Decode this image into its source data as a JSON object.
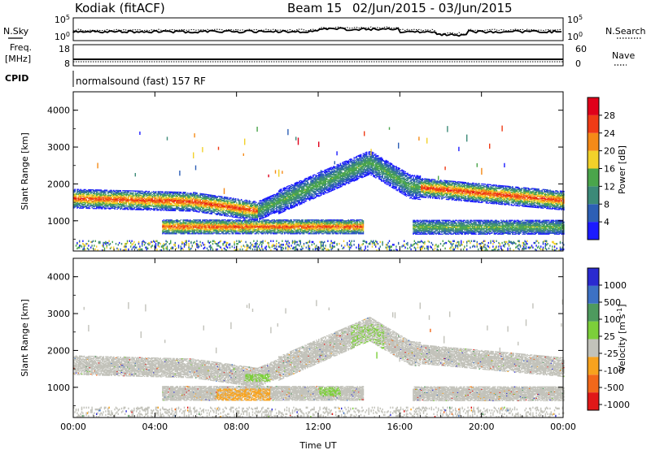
{
  "header": {
    "station": "Kodiak (fitACF)",
    "beam": "Beam 15",
    "date_range": "02/Jun/2015 - 03/Jun/2015"
  },
  "strip_labels": {
    "nsky": "N.Sky",
    "nsearch": "N.Search",
    "freq_l1": "Freq.",
    "freq_l2": "[MHz]",
    "nave": "Nave",
    "cpid": "CPID",
    "cpid_value": "normalsound (fast) 157 RF"
  },
  "strip_ticks": {
    "noise_left": [
      "10^5",
      "10^0"
    ],
    "noise_right": [
      "10^5",
      "10^0"
    ],
    "freq_left": [
      "18",
      "8"
    ],
    "nave_right": [
      "60",
      "0"
    ]
  },
  "colors": {
    "power_scale": [
      "#1b1bff",
      "#2d5fb5",
      "#3c8a78",
      "#4aa54b",
      "#f2d12a",
      "#f58a17",
      "#ef3b16",
      "#e0001a"
    ],
    "velocity_scale": [
      "#2a2ad0",
      "#3d71c4",
      "#4e9a5e",
      "#7ccf3a",
      "#c2c2ba",
      "#f7a21e",
      "#f2681a",
      "#e01818"
    ],
    "scatter_background": "#ffffff"
  },
  "chart_data": [
    {
      "type": "heatmap",
      "title": "",
      "xlabel": "Time UT",
      "ylabel": "Slant Range [km]",
      "x_ticks": [
        "00:00",
        "04:00",
        "08:00",
        "12:00",
        "16:00",
        "20:00",
        "00:00"
      ],
      "xlim": [
        0,
        24
      ],
      "y_ticks": [
        "1000",
        "2000",
        "3000",
        "4000"
      ],
      "ylim": [
        180,
        4500
      ],
      "colorbar": {
        "label": "Power [dB]",
        "ticks": [
          "4",
          "8",
          "12",
          "16",
          "20",
          "24",
          "28"
        ],
        "range": [
          0,
          32
        ]
      },
      "scatter_bands": [
        {
          "name": "lower",
          "start_h": 4.2,
          "end_h": 14.3,
          "center_km": 830,
          "width_km": 380,
          "peak_db": 26
        },
        {
          "name": "lower",
          "start_h": 16.6,
          "end_h": 24.0,
          "center_km": 820,
          "width_km": 360,
          "peak_db": 16
        },
        {
          "name": "upper",
          "start_h": 0.0,
          "end_h": 24.0,
          "center_km": 1550,
          "width_km": 550,
          "peak_db": 24
        }
      ]
    },
    {
      "type": "heatmap",
      "title": "",
      "xlabel": "Time UT",
      "ylabel": "Slant Range [km]",
      "x_ticks": [
        "00:00",
        "04:00",
        "08:00",
        "12:00",
        "16:00",
        "20:00",
        "00:00"
      ],
      "xlim": [
        0,
        24
      ],
      "y_ticks": [
        "1000",
        "2000",
        "3000",
        "4000"
      ],
      "ylim": [
        180,
        4500
      ],
      "colorbar": {
        "label": "Velocity [m s^-1]",
        "ticks": [
          "1000",
          "500",
          "100",
          "25",
          "-25",
          "-100",
          "-500",
          "-1000"
        ],
        "range": [
          -1000,
          1000
        ]
      },
      "dominant_value_class": "-25 to 25",
      "notable_patches": [
        {
          "start_h": 7.0,
          "end_h": 9.6,
          "center_km": 820,
          "value_class": "-100 to -25"
        },
        {
          "start_h": 12.0,
          "end_h": 13.0,
          "center_km": 900,
          "value_class": "25 to 100"
        },
        {
          "start_h": 8.4,
          "end_h": 9.6,
          "center_km": 1250,
          "value_class": "25 to 100"
        }
      ]
    }
  ]
}
